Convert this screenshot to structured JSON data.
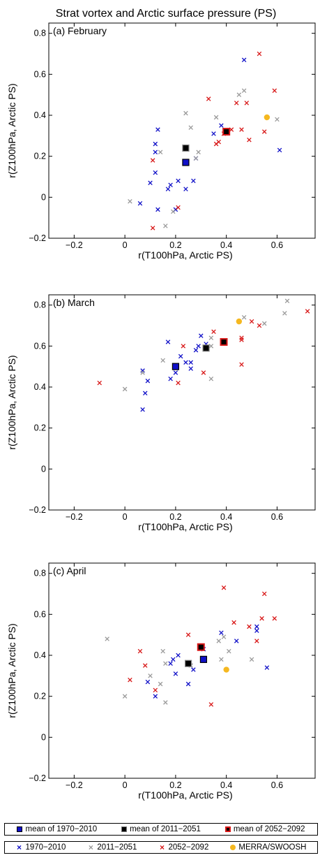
{
  "figure_title": "Strat vortex and Arctic surface pressure (PS)",
  "colors": {
    "c1970": "#1010c8",
    "c2011": "#9a9a9a",
    "c2052": "#d81818",
    "merra": "#f5b820"
  },
  "chart_data": [
    {
      "type": "scatter",
      "panel_label": "(a) February",
      "xlabel": "r(T100hPa, Arctic PS)",
      "ylabel": "r(Z100hPa, Arctic PS)",
      "xlim": [
        -0.3,
        0.75
      ],
      "ylim": [
        -0.2,
        0.85
      ],
      "xticks": [
        "−0.2",
        "0",
        "0.2",
        "0.4",
        "0.6"
      ],
      "yticks": [
        "−0.2",
        "0",
        "0.2",
        "0.4",
        "0.6",
        "0.8"
      ],
      "series": [
        {
          "name": "1970−2010",
          "marker": "x",
          "color": "#1010c8",
          "points": [
            [
              0.47,
              0.67
            ],
            [
              0.38,
              0.35
            ],
            [
              0.35,
              0.31
            ],
            [
              0.13,
              0.33
            ],
            [
              0.12,
              0.26
            ],
            [
              0.12,
              0.22
            ],
            [
              0.61,
              0.23
            ],
            [
              0.28,
              0.19
            ],
            [
              0.27,
              0.08
            ],
            [
              0.21,
              0.08
            ],
            [
              0.18,
              0.06
            ],
            [
              0.1,
              0.07
            ],
            [
              0.12,
              0.12
            ],
            [
              0.17,
              0.04
            ],
            [
              0.24,
              0.04
            ],
            [
              0.06,
              -0.03
            ],
            [
              0.13,
              -0.06
            ],
            [
              0.2,
              -0.06
            ]
          ]
        },
        {
          "name": "2011−2051",
          "marker": "x",
          "color": "#9a9a9a",
          "points": [
            [
              0.47,
              0.52
            ],
            [
              0.45,
              0.5
            ],
            [
              0.36,
              0.39
            ],
            [
              0.24,
              0.41
            ],
            [
              0.26,
              0.34
            ],
            [
              0.14,
              0.22
            ],
            [
              0.6,
              0.38
            ],
            [
              0.29,
              0.22
            ],
            [
              0.28,
              0.19
            ],
            [
              0.02,
              -0.02
            ],
            [
              0.19,
              -0.07
            ],
            [
              0.16,
              -0.14
            ]
          ]
        },
        {
          "name": "2052−2092",
          "marker": "x",
          "color": "#d81818",
          "points": [
            [
              0.53,
              0.7
            ],
            [
              0.59,
              0.52
            ],
            [
              0.33,
              0.48
            ],
            [
              0.44,
              0.46
            ],
            [
              0.48,
              0.46
            ],
            [
              0.42,
              0.33
            ],
            [
              0.46,
              0.33
            ],
            [
              0.55,
              0.32
            ],
            [
              0.39,
              0.31
            ],
            [
              0.37,
              0.27
            ],
            [
              0.36,
              0.26
            ],
            [
              0.49,
              0.28
            ],
            [
              0.11,
              0.18
            ],
            [
              0.21,
              -0.05
            ],
            [
              0.11,
              -0.15
            ]
          ]
        },
        {
          "name": "MERRA/SWOOSH",
          "marker": "dot",
          "color": "#f5b820",
          "points": [
            [
              0.56,
              0.39
            ]
          ]
        },
        {
          "name": "mean of 1970−2010",
          "marker": "square",
          "color": "#1010c8",
          "points": [
            [
              0.24,
              0.17
            ]
          ]
        },
        {
          "name": "mean of 2011−2051",
          "marker": "square",
          "color": "#000000",
          "points": [
            [
              0.24,
              0.24
            ]
          ]
        },
        {
          "name": "mean of 2052−2092",
          "marker": "square",
          "color": "#d81818",
          "points": [
            [
              0.4,
              0.32
            ]
          ]
        }
      ]
    },
    {
      "type": "scatter",
      "panel_label": "(b) March",
      "xlabel": "r(T100hPa, Arctic PS)",
      "ylabel": "r(Z100hPa, Arctic PS)",
      "xlim": [
        -0.3,
        0.75
      ],
      "ylim": [
        -0.2,
        0.85
      ],
      "xticks": [
        "−0.2",
        "0",
        "0.2",
        "0.4",
        "0.6"
      ],
      "yticks": [
        "−0.2",
        "0",
        "0.2",
        "0.4",
        "0.6",
        "0.8"
      ],
      "series": [
        {
          "name": "1970−2010",
          "marker": "x",
          "color": "#1010c8",
          "points": [
            [
              0.3,
              0.65
            ],
            [
              0.32,
              0.61
            ],
            [
              0.17,
              0.62
            ],
            [
              0.29,
              0.6
            ],
            [
              0.28,
              0.58
            ],
            [
              0.22,
              0.55
            ],
            [
              0.24,
              0.52
            ],
            [
              0.26,
              0.52
            ],
            [
              0.26,
              0.49
            ],
            [
              0.2,
              0.47
            ],
            [
              0.18,
              0.44
            ],
            [
              0.07,
              0.48
            ],
            [
              0.09,
              0.43
            ],
            [
              0.08,
              0.37
            ],
            [
              0.07,
              0.29
            ]
          ]
        },
        {
          "name": "2011−2051",
          "marker": "x",
          "color": "#9a9a9a",
          "points": [
            [
              0.64,
              0.82
            ],
            [
              0.63,
              0.76
            ],
            [
              0.47,
              0.74
            ],
            [
              0.55,
              0.71
            ],
            [
              0.34,
              0.64
            ],
            [
              0.34,
              0.6
            ],
            [
              0.15,
              0.53
            ],
            [
              0.0,
              0.39
            ],
            [
              0.34,
              0.44
            ],
            [
              0.07,
              0.47
            ]
          ]
        },
        {
          "name": "2052−2092",
          "marker": "x",
          "color": "#d81818",
          "points": [
            [
              0.72,
              0.77
            ],
            [
              0.5,
              0.72
            ],
            [
              0.53,
              0.7
            ],
            [
              0.35,
              0.67
            ],
            [
              0.46,
              0.64
            ],
            [
              0.46,
              0.63
            ],
            [
              0.23,
              0.6
            ],
            [
              0.31,
              0.47
            ],
            [
              0.46,
              0.51
            ],
            [
              0.21,
              0.42
            ],
            [
              -0.1,
              0.42
            ]
          ]
        },
        {
          "name": "MERRA/SWOOSH",
          "marker": "dot",
          "color": "#f5b820",
          "points": [
            [
              0.45,
              0.72
            ]
          ]
        },
        {
          "name": "mean of 1970−2010",
          "marker": "square",
          "color": "#1010c8",
          "points": [
            [
              0.2,
              0.5
            ]
          ]
        },
        {
          "name": "mean of 2011−2051",
          "marker": "square",
          "color": "#000000",
          "points": [
            [
              0.32,
              0.59
            ]
          ]
        },
        {
          "name": "mean of 2052−2092",
          "marker": "square",
          "color": "#d81818",
          "points": [
            [
              0.39,
              0.62
            ]
          ]
        }
      ]
    },
    {
      "type": "scatter",
      "panel_label": "(c) April",
      "xlabel": "r(T100hPa, Arctic PS)",
      "ylabel": "r(Z100hPa, Arctic PS)",
      "xlim": [
        -0.3,
        0.75
      ],
      "ylim": [
        -0.2,
        0.85
      ],
      "xticks": [
        "−0.2",
        "0",
        "0.2",
        "0.4",
        "0.6"
      ],
      "yticks": [
        "−0.2",
        "0",
        "0.2",
        "0.4",
        "0.6",
        "0.8"
      ],
      "series": [
        {
          "name": "1970−2010",
          "marker": "x",
          "color": "#1010c8",
          "points": [
            [
              0.52,
              0.54
            ],
            [
              0.52,
              0.52
            ],
            [
              0.38,
              0.51
            ],
            [
              0.44,
              0.47
            ],
            [
              0.31,
              0.43
            ],
            [
              0.21,
              0.4
            ],
            [
              0.19,
              0.38
            ],
            [
              0.18,
              0.36
            ],
            [
              0.27,
              0.33
            ],
            [
              0.56,
              0.34
            ],
            [
              0.09,
              0.27
            ],
            [
              0.2,
              0.31
            ],
            [
              0.12,
              0.2
            ],
            [
              0.25,
              0.26
            ]
          ]
        },
        {
          "name": "2011−2051",
          "marker": "x",
          "color": "#9a9a9a",
          "points": [
            [
              -0.07,
              0.48
            ],
            [
              0.15,
              0.42
            ],
            [
              0.16,
              0.36
            ],
            [
              0.37,
              0.47
            ],
            [
              0.39,
              0.49
            ],
            [
              0.41,
              0.42
            ],
            [
              0.26,
              0.35
            ],
            [
              0.1,
              0.3
            ],
            [
              0.14,
              0.26
            ],
            [
              0.5,
              0.38
            ],
            [
              0.38,
              0.38
            ],
            [
              0.16,
              0.17
            ],
            [
              0.0,
              0.2
            ]
          ]
        },
        {
          "name": "2052−2092",
          "marker": "x",
          "color": "#d81818",
          "points": [
            [
              0.39,
              0.73
            ],
            [
              0.55,
              0.7
            ],
            [
              0.59,
              0.58
            ],
            [
              0.54,
              0.58
            ],
            [
              0.49,
              0.54
            ],
            [
              0.43,
              0.56
            ],
            [
              0.25,
              0.5
            ],
            [
              0.52,
              0.47
            ],
            [
              0.06,
              0.42
            ],
            [
              0.08,
              0.35
            ],
            [
              0.02,
              0.28
            ],
            [
              0.12,
              0.23
            ],
            [
              0.34,
              0.16
            ]
          ]
        },
        {
          "name": "MERRA/SWOOSH",
          "marker": "dot",
          "color": "#f5b820",
          "points": [
            [
              0.4,
              0.33
            ]
          ]
        },
        {
          "name": "mean of 1970−2010",
          "marker": "square",
          "color": "#1010c8",
          "points": [
            [
              0.31,
              0.38
            ]
          ]
        },
        {
          "name": "mean of 2011−2051",
          "marker": "square",
          "color": "#000000",
          "points": [
            [
              0.25,
              0.36
            ]
          ]
        },
        {
          "name": "mean of 2052−2092",
          "marker": "square",
          "color": "#d81818",
          "points": [
            [
              0.3,
              0.44
            ]
          ]
        }
      ]
    }
  ],
  "legend": {
    "means": [
      "mean of 1970−2010",
      "mean of 2011−2051",
      "mean of 2052−2092"
    ],
    "members": [
      "1970−2010",
      "2011−2051",
      "2052−2092",
      "MERRA/SWOOSH"
    ]
  }
}
